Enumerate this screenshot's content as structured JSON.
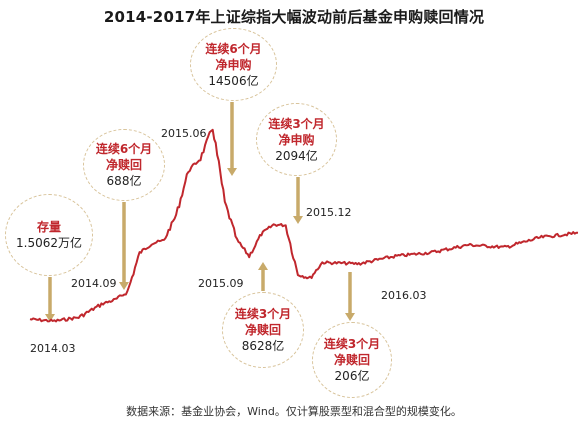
{
  "colors": {
    "line": "#c0272d",
    "arrow": "#c8aa6a",
    "bubble_border": "#d8c39a",
    "red_text": "#c0272d"
  },
  "title": "2014-2017年上证综指大幅波动前后基金申购赎回情况",
  "source": "数据来源：基金业协会，Wind。仅计算股票型和混合型的规模变化。",
  "date_labels": {
    "d2014_03": "2014.03",
    "d2014_09": "2014.09",
    "d2015_06": "2015.06",
    "d2015_09": "2015.09",
    "d2015_12": "2015.12",
    "d2016_03": "2016.03"
  },
  "annotations": {
    "a1": {
      "line1": "存量",
      "line2": "",
      "value": "1.5062万亿"
    },
    "a2": {
      "line1": "连续6个月",
      "line2": "净赎回",
      "value": "688亿"
    },
    "a3": {
      "line1": "连续6个月",
      "line2": "净申购",
      "value": "14506亿"
    },
    "a4": {
      "line1": "连续3个月",
      "line2": "净申购",
      "value": "2094亿"
    },
    "a5": {
      "line1": "连续3个月",
      "line2": "净赎回",
      "value": "8628亿"
    },
    "a6": {
      "line1": "连续3个月",
      "line2": "净赎回",
      "value": "206亿"
    }
  },
  "chart_data": {
    "type": "line",
    "title": "2014-2017年上证综指大幅波动前后基金申购赎回情况",
    "xlabel": "",
    "ylabel": "",
    "x_range": [
      "2014.03",
      "2017.12"
    ],
    "y_range": [
      1800,
      5400
    ],
    "y_axis_visible": false,
    "grid": false,
    "series": [
      {
        "x": [
          "2014.03",
          "2014.05",
          "2014.07",
          "2014.09",
          "2014.10",
          "2014.11",
          "2014.12",
          "2015.01",
          "2015.02",
          "2015.03",
          "2015.04",
          "2015.05",
          "2015.06",
          "2015.07",
          "2015.08",
          "2015.09",
          "2015.10",
          "2015.11",
          "2015.12",
          "2016.01",
          "2016.02",
          "2016.03",
          "2016.06",
          "2016.09",
          "2016.12",
          "2017.03",
          "2017.06",
          "2017.09",
          "2017.12"
        ],
        "y": [
          2050,
          2020,
          2080,
          2300,
          2360,
          2480,
          3100,
          3250,
          3300,
          3700,
          4400,
          4600,
          5100,
          3900,
          3300,
          3050,
          3400,
          3550,
          3540,
          2760,
          2700,
          2950,
          2930,
          3050,
          3110,
          3230,
          3190,
          3350,
          3420
        ]
      }
    ],
    "annotations": [
      {
        "date": "2014.03",
        "text": "存量 1.5062万亿"
      },
      {
        "date": "2014.09",
        "text": "连续6个月净赎回 688亿"
      },
      {
        "date": "2015.06",
        "text": "连续6个月净申购 14506亿"
      },
      {
        "date": "2015.12",
        "text": "连续3个月净申购 2094亿"
      },
      {
        "date": "2015.09",
        "text": "连续3个月净赎回 8628亿"
      },
      {
        "date": "2016.03",
        "text": "连续3个月净赎回 206亿"
      }
    ]
  }
}
